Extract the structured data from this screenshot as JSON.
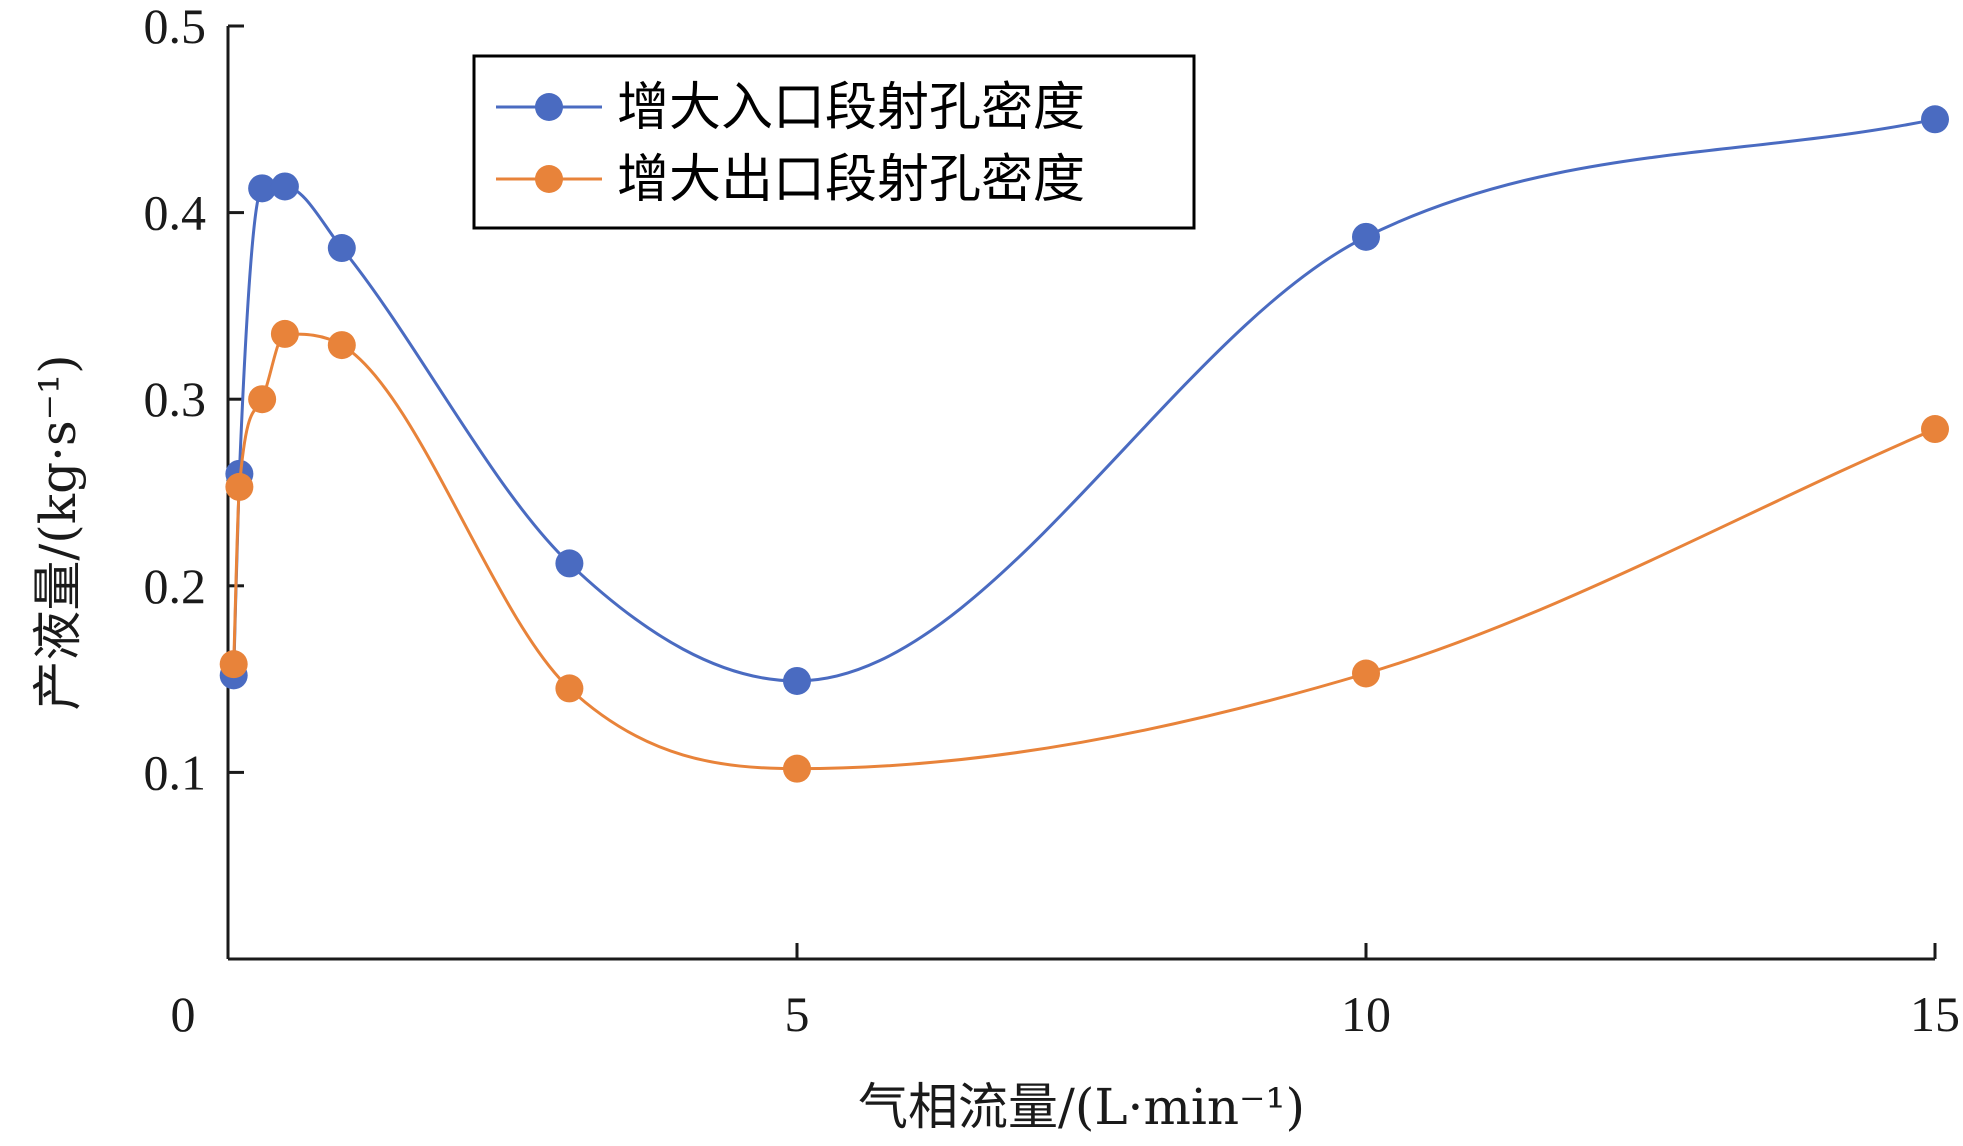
{
  "chart_data": {
    "type": "line",
    "title": "",
    "xlabel": "气相流量/(L·min⁻¹)",
    "ylabel": "产液量/(kg·s⁻¹)",
    "xlim": [
      0,
      15
    ],
    "ylim": [
      0,
      0.5
    ],
    "x_ticks": [
      "0",
      "5",
      "10",
      "15"
    ],
    "y_ticks": [
      "0.1",
      "0.2",
      "0.3",
      "0.4",
      "0.5"
    ],
    "grid": false,
    "legend_position": "top-center",
    "smooth": true,
    "series": [
      {
        "name": "增大入口段射孔密度",
        "color": "#4A6BC1",
        "x": [
          0.05,
          0.1,
          0.3,
          0.5,
          1.0,
          3.0,
          5.0,
          10.0,
          15.0
        ],
        "y": [
          0.152,
          0.26,
          0.413,
          0.414,
          0.381,
          0.212,
          0.149,
          0.387,
          0.45
        ]
      },
      {
        "name": "增大出口段射孔密度",
        "color": "#E8833A",
        "x": [
          0.05,
          0.1,
          0.3,
          0.5,
          1.0,
          3.0,
          5.0,
          10.0,
          15.0
        ],
        "y": [
          0.158,
          0.253,
          0.3,
          0.335,
          0.329,
          0.145,
          0.102,
          0.153,
          0.284
        ]
      }
    ]
  }
}
